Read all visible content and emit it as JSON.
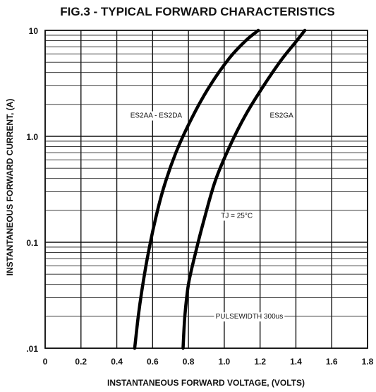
{
  "chart_data": {
    "type": "line",
    "title": "FIG.3 - TYPICAL FORWARD CHARACTERISTICS",
    "xlabel": "INSTANTANEOUS FORWARD VOLTAGE, (VOLTS)",
    "ylabel": "INSTANTANEOUS  FORWARD CURRENT, (A)",
    "xlim": [
      0,
      1.8
    ],
    "ylim": [
      0.01,
      10
    ],
    "yscale": "log",
    "grid": true,
    "xticks": [
      0,
      0.2,
      0.4,
      0.6,
      0.8,
      1.0,
      1.2,
      1.4,
      1.6,
      1.8
    ],
    "xtick_labels": [
      "0",
      "0.2",
      "0.4",
      "0.6",
      "0.8",
      "1.0",
      "1.2",
      "1.4",
      "1.6",
      "1.8"
    ],
    "yticks": [
      0.01,
      0.1,
      1.0,
      10
    ],
    "ytick_labels": [
      ".01",
      "0.1",
      "1.0",
      "10"
    ],
    "series": [
      {
        "name": "ES2AA - ES2DA",
        "x": [
          0.5,
          0.52,
          0.54,
          0.57,
          0.61,
          0.66,
          0.73,
          0.82,
          0.92,
          1.03,
          1.12,
          1.19
        ],
        "y": [
          0.01,
          0.02,
          0.035,
          0.07,
          0.15,
          0.32,
          0.7,
          1.5,
          3.0,
          5.5,
          8.0,
          10.0
        ]
      },
      {
        "name": "ES2GA",
        "x": [
          0.77,
          0.78,
          0.8,
          0.84,
          0.89,
          0.95,
          1.03,
          1.12,
          1.22,
          1.32,
          1.4,
          1.45
        ],
        "y": [
          0.01,
          0.02,
          0.04,
          0.08,
          0.17,
          0.38,
          0.8,
          1.6,
          3.0,
          5.3,
          7.8,
          10.0
        ]
      }
    ],
    "annotations": [
      {
        "text": "TJ = 25°C",
        "x": 1.07,
        "y": 0.17
      },
      {
        "text": "PULSEWIDTH 300us",
        "x": 1.14,
        "y": 0.019
      }
    ]
  }
}
